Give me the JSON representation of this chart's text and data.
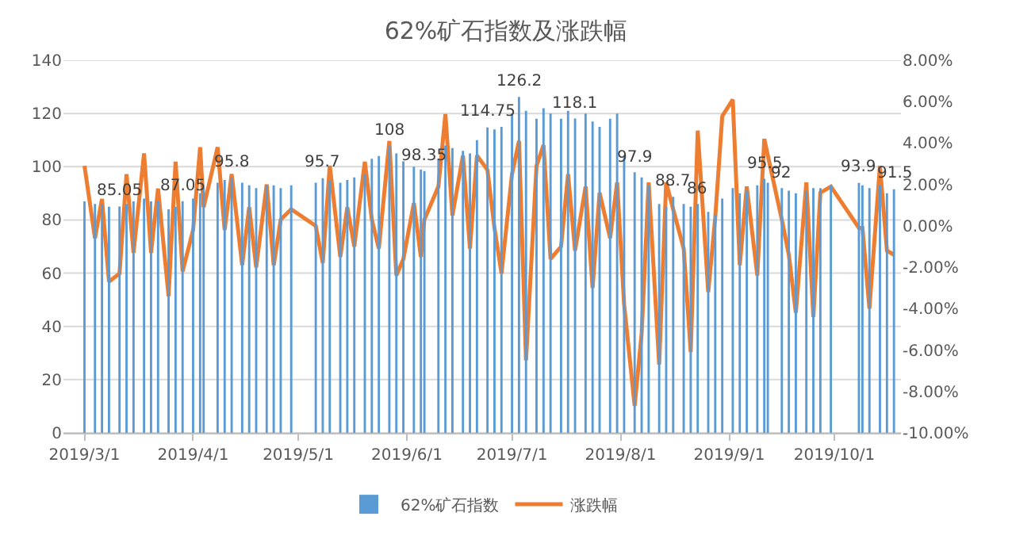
{
  "chart_data": {
    "type": "bar",
    "title": "62%矿石指数及涨跌幅",
    "x": [
      "2019-03-01",
      "2019-03-04",
      "2019-03-06",
      "2019-03-08",
      "2019-03-11",
      "2019-03-13",
      "2019-03-15",
      "2019-03-18",
      "2019-03-20",
      "2019-03-22",
      "2019-03-25",
      "2019-03-27",
      "2019-03-29",
      "2019-04-01",
      "2019-04-03",
      "2019-04-04",
      "2019-04-08",
      "2019-04-10",
      "2019-04-12",
      "2019-04-15",
      "2019-04-17",
      "2019-04-19",
      "2019-04-22",
      "2019-04-24",
      "2019-04-26",
      "2019-04-29",
      "2019-05-06",
      "2019-05-08",
      "2019-05-10",
      "2019-05-13",
      "2019-05-15",
      "2019-05-17",
      "2019-05-20",
      "2019-05-22",
      "2019-05-24",
      "2019-05-27",
      "2019-05-29",
      "2019-05-31",
      "2019-06-03",
      "2019-06-05",
      "2019-06-06",
      "2019-06-10",
      "2019-06-12",
      "2019-06-14",
      "2019-06-17",
      "2019-06-19",
      "2019-06-21",
      "2019-06-24",
      "2019-06-26",
      "2019-06-28",
      "2019-07-01",
      "2019-07-03",
      "2019-07-05",
      "2019-07-08",
      "2019-07-10",
      "2019-07-12",
      "2019-07-15",
      "2019-07-17",
      "2019-07-19",
      "2019-07-22",
      "2019-07-24",
      "2019-07-26",
      "2019-07-29",
      "2019-07-31",
      "2019-08-02",
      "2019-08-05",
      "2019-08-07",
      "2019-08-09",
      "2019-08-12",
      "2019-08-14",
      "2019-08-16",
      "2019-08-19",
      "2019-08-21",
      "2019-08-23",
      "2019-08-26",
      "2019-08-28",
      "2019-08-30",
      "2019-09-02",
      "2019-09-04",
      "2019-09-06",
      "2019-09-09",
      "2019-09-11",
      "2019-09-12",
      "2019-09-16",
      "2019-09-18",
      "2019-09-20",
      "2019-09-23",
      "2019-09-25",
      "2019-09-27",
      "2019-09-30",
      "2019-10-08",
      "2019-10-09",
      "2019-10-11",
      "2019-10-14",
      "2019-10-16",
      "2019-10-18"
    ],
    "series": [
      {
        "name": "62%矿石指数",
        "color": "#5b9bd5",
        "values": [
          87,
          86,
          86,
          85,
          85.05,
          86,
          87,
          88,
          87,
          87,
          84,
          85,
          87.05,
          88,
          90,
          92,
          94,
          95,
          95.8,
          94,
          93,
          92,
          93,
          93,
          92,
          93,
          94,
          95.7,
          95,
          94,
          95,
          96,
          97,
          103,
          104,
          108,
          105,
          102,
          100,
          99,
          98.35,
          103,
          108,
          107,
          106,
          105,
          110,
          114.75,
          114,
          115,
          120,
          126.2,
          121,
          118,
          122,
          120,
          118,
          121,
          118.1,
          120,
          117,
          115,
          118,
          120,
          104,
          97.9,
          96,
          93,
          86,
          85,
          88.7,
          86,
          85,
          86,
          83,
          82,
          88,
          92,
          90,
          91,
          93,
          95.5,
          94,
          92,
          91,
          90,
          91,
          92,
          92,
          93,
          93.9,
          93,
          92,
          93,
          90,
          91.5
        ],
        "value_labels": [
          null,
          null,
          null,
          null,
          "85.05",
          null,
          null,
          null,
          null,
          null,
          null,
          null,
          "87.05",
          null,
          null,
          null,
          null,
          null,
          "95.8",
          null,
          null,
          null,
          null,
          null,
          null,
          null,
          null,
          "95.7",
          null,
          null,
          null,
          null,
          null,
          null,
          null,
          "108",
          null,
          null,
          null,
          null,
          "98.35",
          null,
          null,
          null,
          null,
          null,
          null,
          "114.75",
          null,
          null,
          null,
          "126.2",
          null,
          null,
          null,
          null,
          null,
          null,
          "118.1",
          null,
          null,
          null,
          null,
          null,
          null,
          "97.9",
          null,
          null,
          null,
          null,
          "88.7",
          null,
          null,
          "86",
          null,
          null,
          null,
          null,
          null,
          null,
          null,
          "95.5",
          null,
          "92",
          null,
          null,
          null,
          null,
          null,
          null,
          "93.9",
          null,
          null,
          null,
          null,
          "91.5"
        ]
      },
      {
        "name": "涨跌幅",
        "type": "line",
        "axis": "y2",
        "color": "#ed7d31",
        "values": [
          2.9,
          -0.6,
          1.3,
          -2.7,
          -2.3,
          2.5,
          -1.3,
          3.5,
          -1.3,
          1.8,
          -3.4,
          3.1,
          -2.2,
          -0.2,
          3.8,
          0.9,
          3.8,
          -0.2,
          2.5,
          -1.9,
          0.9,
          -2.0,
          2.0,
          -1.9,
          0.3,
          0.8,
          0.0,
          -1.8,
          2.9,
          -1.5,
          0.9,
          -1.0,
          3.1,
          0.3,
          -1.1,
          4.1,
          -2.4,
          -1.6,
          1.1,
          -1.5,
          0.3,
          1.9,
          5.4,
          0.5,
          3.4,
          -1.1,
          3.4,
          2.7,
          -0.1,
          -2.3,
          2.5,
          4.1,
          -6.5,
          2.9,
          3.9,
          -1.6,
          -1.0,
          2.5,
          -1.2,
          1.9,
          -3.0,
          1.6,
          -0.6,
          2.1,
          -3.8,
          -8.7,
          -5.2,
          2.1,
          -6.7,
          2.1,
          0.8,
          -1.1,
          -6.1,
          4.6,
          -3.2,
          0.4,
          5.3,
          6.1,
          -1.9,
          1.9,
          -2.4,
          4.2,
          3.4,
          0.3,
          -1.4,
          -4.2,
          2.1,
          -4.4,
          1.6,
          1.9,
          -0.1,
          -0.1,
          -4.0,
          2.9,
          -1.2,
          -1.4
        ]
      }
    ],
    "xlim": [
      "2019-02-23",
      "2019-10-20"
    ],
    "xticks": [
      {
        "value": "2019-03-01",
        "label": "2019/3/1"
      },
      {
        "value": "2019-04-01",
        "label": "2019/4/1"
      },
      {
        "value": "2019-05-01",
        "label": "2019/5/1"
      },
      {
        "value": "2019-06-01",
        "label": "2019/6/1"
      },
      {
        "value": "2019-07-01",
        "label": "2019/7/1"
      },
      {
        "value": "2019-08-01",
        "label": "2019/8/1"
      },
      {
        "value": "2019-09-01",
        "label": "2019/9/1"
      },
      {
        "value": "2019-10-01",
        "label": "2019/10/1"
      }
    ],
    "ylim": [
      0,
      140
    ],
    "yticks": [
      0,
      20,
      40,
      60,
      80,
      100,
      120,
      140
    ],
    "y2lim": [
      -10,
      8
    ],
    "y2ticks": [
      {
        "value": -10,
        "label": "-10.00%"
      },
      {
        "value": -8,
        "label": "-8.00%"
      },
      {
        "value": -6,
        "label": "-6.00%"
      },
      {
        "value": -4,
        "label": "-4.00%"
      },
      {
        "value": -2,
        "label": "-2.00%"
      },
      {
        "value": 0,
        "label": "0.00%"
      },
      {
        "value": 2,
        "label": "2.00%"
      },
      {
        "value": 4,
        "label": "4.00%"
      },
      {
        "value": 6,
        "label": "6.00%"
      },
      {
        "value": 8,
        "label": "8.00%"
      }
    ],
    "grid": "y",
    "legend": "bottom",
    "marker": "none",
    "line_style": "solid"
  }
}
